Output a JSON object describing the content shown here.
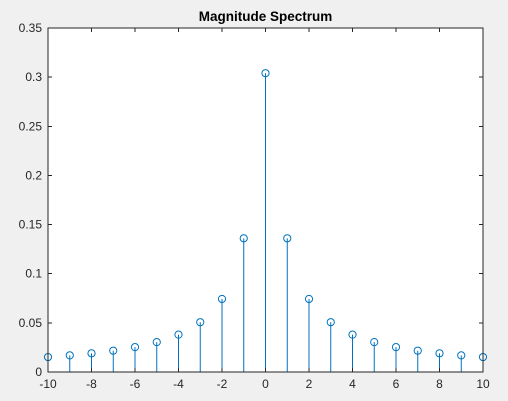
{
  "chart_data": {
    "type": "stem",
    "title": "Magnitude Spectrum",
    "xlabel": "",
    "ylabel": "",
    "xlim": [
      -10,
      10
    ],
    "ylim": [
      0,
      0.35
    ],
    "x_ticks": [
      -10,
      -8,
      -6,
      -4,
      -2,
      0,
      2,
      4,
      6,
      8,
      10
    ],
    "x_tick_labels": [
      "-10",
      "-8",
      "-6",
      "-4",
      "-2",
      "0",
      "2",
      "4",
      "6",
      "8",
      "10"
    ],
    "y_ticks": [
      0,
      0.05,
      0.1,
      0.15,
      0.2,
      0.25,
      0.3,
      0.35
    ],
    "y_tick_labels": [
      "0",
      "0.05",
      "0.1",
      "0.15",
      "0.2",
      "0.25",
      "0.3",
      "0.35"
    ],
    "grid": false,
    "box": true,
    "marker": "circle-open",
    "x": [
      -10,
      -9,
      -8,
      -7,
      -6,
      -5,
      -4,
      -3,
      -2,
      -1,
      0,
      1,
      2,
      3,
      4,
      5,
      6,
      7,
      8,
      9,
      10
    ],
    "y": [
      0.0152,
      0.0169,
      0.019,
      0.0217,
      0.0253,
      0.0304,
      0.038,
      0.0507,
      0.0743,
      0.136,
      0.304,
      0.136,
      0.0743,
      0.0507,
      0.038,
      0.0304,
      0.0253,
      0.0217,
      0.019,
      0.0169,
      0.0152
    ],
    "colors": {
      "stem": "#0072bd",
      "axes": "#262626",
      "plot_background": "#ffffff",
      "figure_background": "#f0f0f0"
    }
  }
}
